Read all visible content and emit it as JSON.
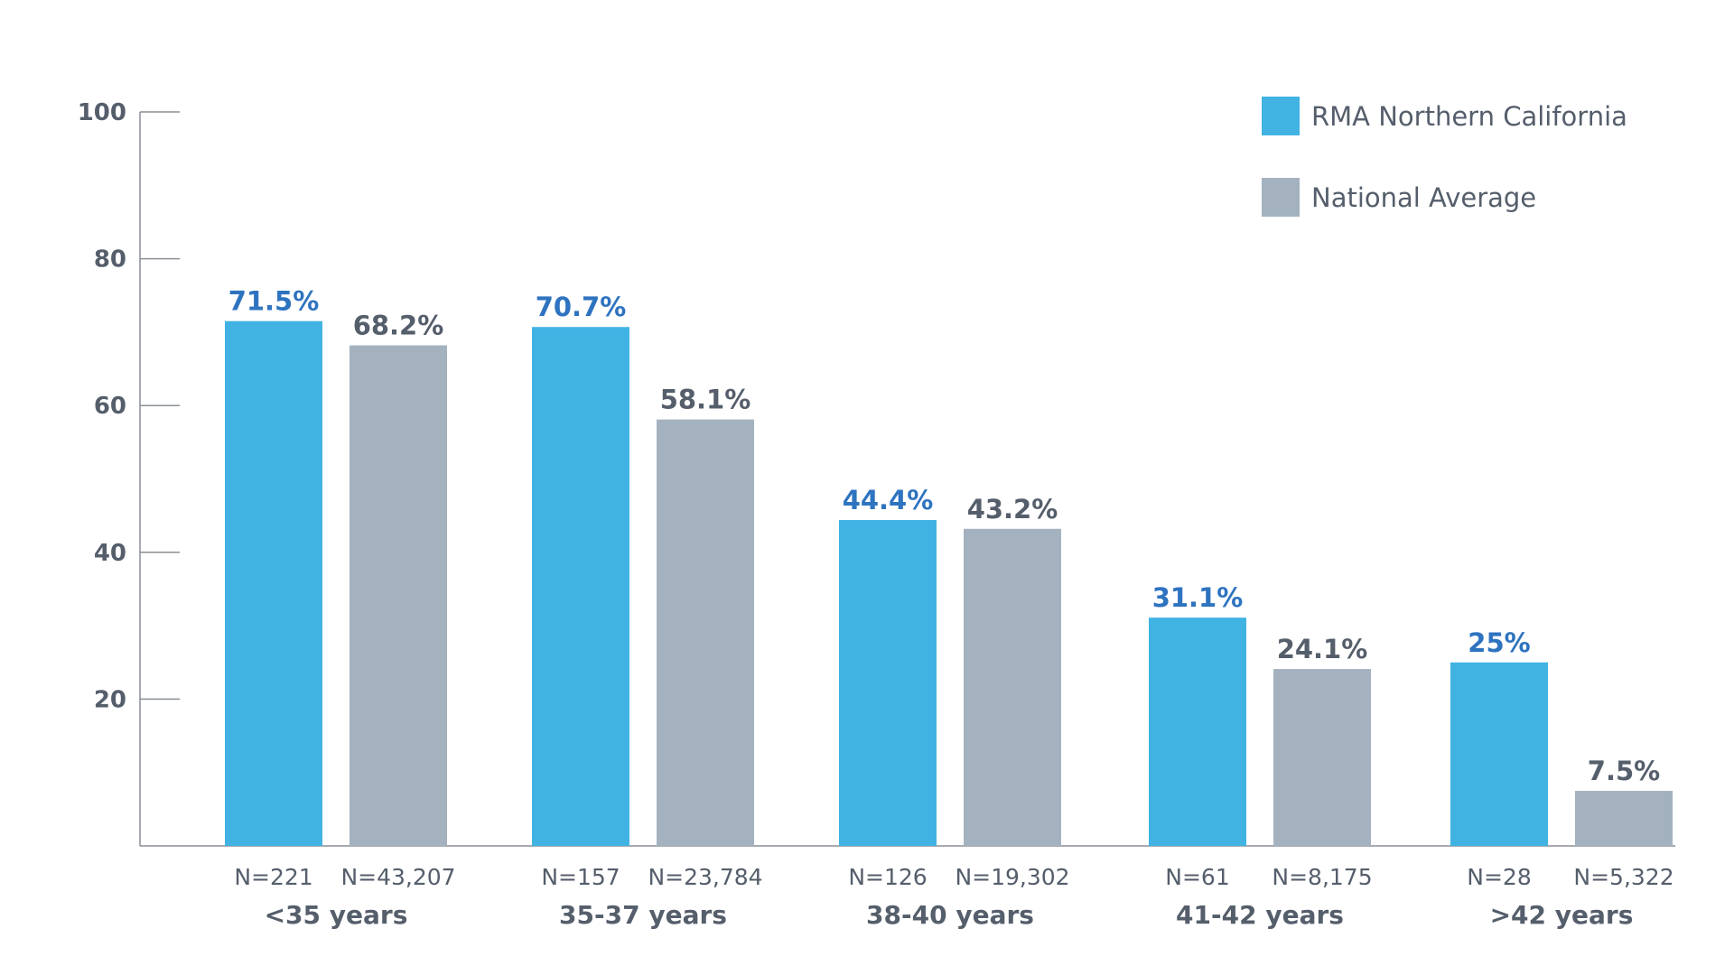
{
  "colors": {
    "rma": "#41b3e3",
    "national": "#a4b2c0",
    "rma_label": "#2e73c0",
    "national_label": "#555e6b",
    "axis": "#8a8f96",
    "text": "#555e6b"
  },
  "chart_data": {
    "type": "bar",
    "ylim": [
      0,
      100
    ],
    "yticks": [
      "20",
      "40",
      "60",
      "80",
      "100"
    ],
    "legend_position": "top-right",
    "grid": false,
    "categories": [
      "<35 years",
      "35-37 years",
      "38-40 years",
      "41-42 years",
      ">42 years"
    ],
    "series": [
      {
        "name": "RMA Northern California",
        "values": [
          71.5,
          70.7,
          44.4,
          31.1,
          25
        ],
        "labels": [
          "71.5%",
          "70.7%",
          "44.4%",
          "31.1%",
          "25%"
        ],
        "n": [
          "N=221",
          "N=157",
          "N=126",
          "N=61",
          "N=28"
        ]
      },
      {
        "name": "National Average",
        "values": [
          68.2,
          58.1,
          43.2,
          24.1,
          7.5
        ],
        "labels": [
          "68.2%",
          "58.1%",
          "43.2%",
          "24.1%",
          "7.5%"
        ],
        "n": [
          "N=43,207",
          "N=23,784",
          "N=19,302",
          "N=8,175",
          "N=5,322"
        ]
      }
    ]
  }
}
